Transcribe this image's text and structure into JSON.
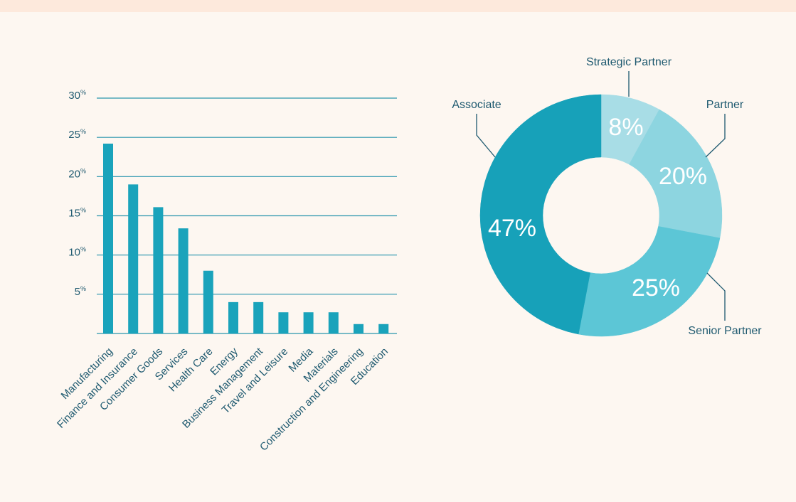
{
  "chart_data": [
    {
      "type": "bar",
      "categories": [
        "Manufacturing",
        "Finance and Insurance",
        "Consumer Goods",
        "Services",
        "Health Care",
        "Energy",
        "Business Management",
        "Travel and Leisure",
        "Media",
        "Materials",
        "Construction and Engineering",
        "Education"
      ],
      "values": [
        24.2,
        19.0,
        16.1,
        13.4,
        8.0,
        4.0,
        4.0,
        2.7,
        2.7,
        2.7,
        1.2,
        1.2
      ],
      "yticks": [
        5,
        10,
        15,
        20,
        25,
        30
      ],
      "tick_suffix": "%",
      "ylim": [
        0,
        30
      ],
      "grid": true,
      "bar_color": "#1aa3bb"
    },
    {
      "type": "pie",
      "style": "donut",
      "slices": [
        {
          "label": "Strategic Partner",
          "value": 8,
          "display": "8%",
          "color": "#a8dde6"
        },
        {
          "label": "Partner",
          "value": 20,
          "display": "20%",
          "color": "#8dd5e0"
        },
        {
          "label": "Senior Partner",
          "value": 25,
          "display": "25%",
          "color": "#5cc6d6"
        },
        {
          "label": "Associate",
          "value": 47,
          "display": "47%",
          "color": "#17a1b9"
        }
      ]
    }
  ],
  "colors": {
    "background": "#fdf7f1",
    "top_band": "#fde9dc",
    "grid": "#2a95ad",
    "text": "#1f5a70"
  }
}
